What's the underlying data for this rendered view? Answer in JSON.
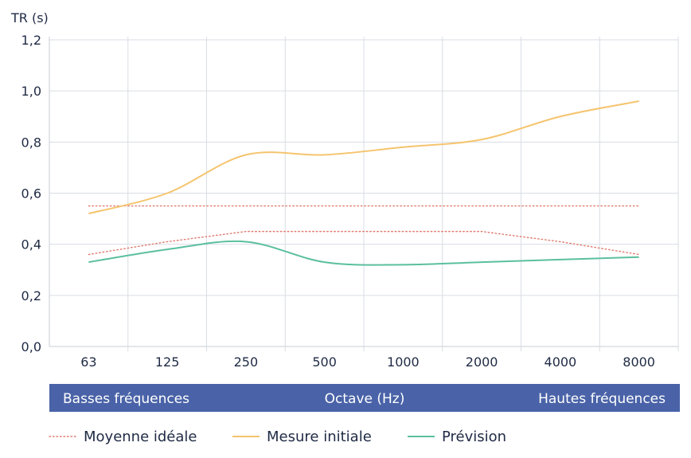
{
  "chart_data": {
    "type": "line",
    "ylabel": "TR (s)",
    "ylim": [
      0,
      1.2
    ],
    "yticks": [
      "0,0",
      "0,2",
      "0,4",
      "0,6",
      "0,8",
      "1,0",
      "1,2"
    ],
    "categories": [
      "63",
      "125",
      "250",
      "500",
      "1000",
      "2000",
      "4000",
      "8000"
    ],
    "xlabel": "Octave (Hz)",
    "band_left": "Basses fréquences",
    "band_right": "Hautes fréquences",
    "grid": true,
    "legend_position": "bottom",
    "series": [
      {
        "name": "Moyenne idéale",
        "style": "dotted",
        "color": "#e07a6e",
        "values": [
          0.55,
          0.55,
          0.55,
          0.55,
          0.55,
          0.55,
          0.55,
          0.55
        ]
      },
      {
        "name": "Moyenne idéale",
        "style": "dotted",
        "color": "#e07a6e",
        "values": [
          0.36,
          0.41,
          0.45,
          0.45,
          0.45,
          0.45,
          0.41,
          0.36
        ]
      },
      {
        "name": "Mesure initiale",
        "style": "solid",
        "color": "#f5c46e",
        "values": [
          0.52,
          0.6,
          0.75,
          0.75,
          0.78,
          0.81,
          0.9,
          0.96
        ]
      },
      {
        "name": "Prévision",
        "style": "solid",
        "color": "#5bbf9f",
        "values": [
          0.33,
          0.38,
          0.41,
          0.33,
          0.32,
          0.33,
          0.34,
          0.35
        ]
      }
    ],
    "legend": [
      {
        "name": "Moyenne idéale",
        "style": "dotted",
        "color": "#e07a6e"
      },
      {
        "name": "Mesure initiale",
        "style": "solid",
        "color": "#f5c46e"
      },
      {
        "name": "Prévision",
        "style": "solid",
        "color": "#5bbf9f"
      }
    ],
    "banner_color": "#4a63a8"
  }
}
